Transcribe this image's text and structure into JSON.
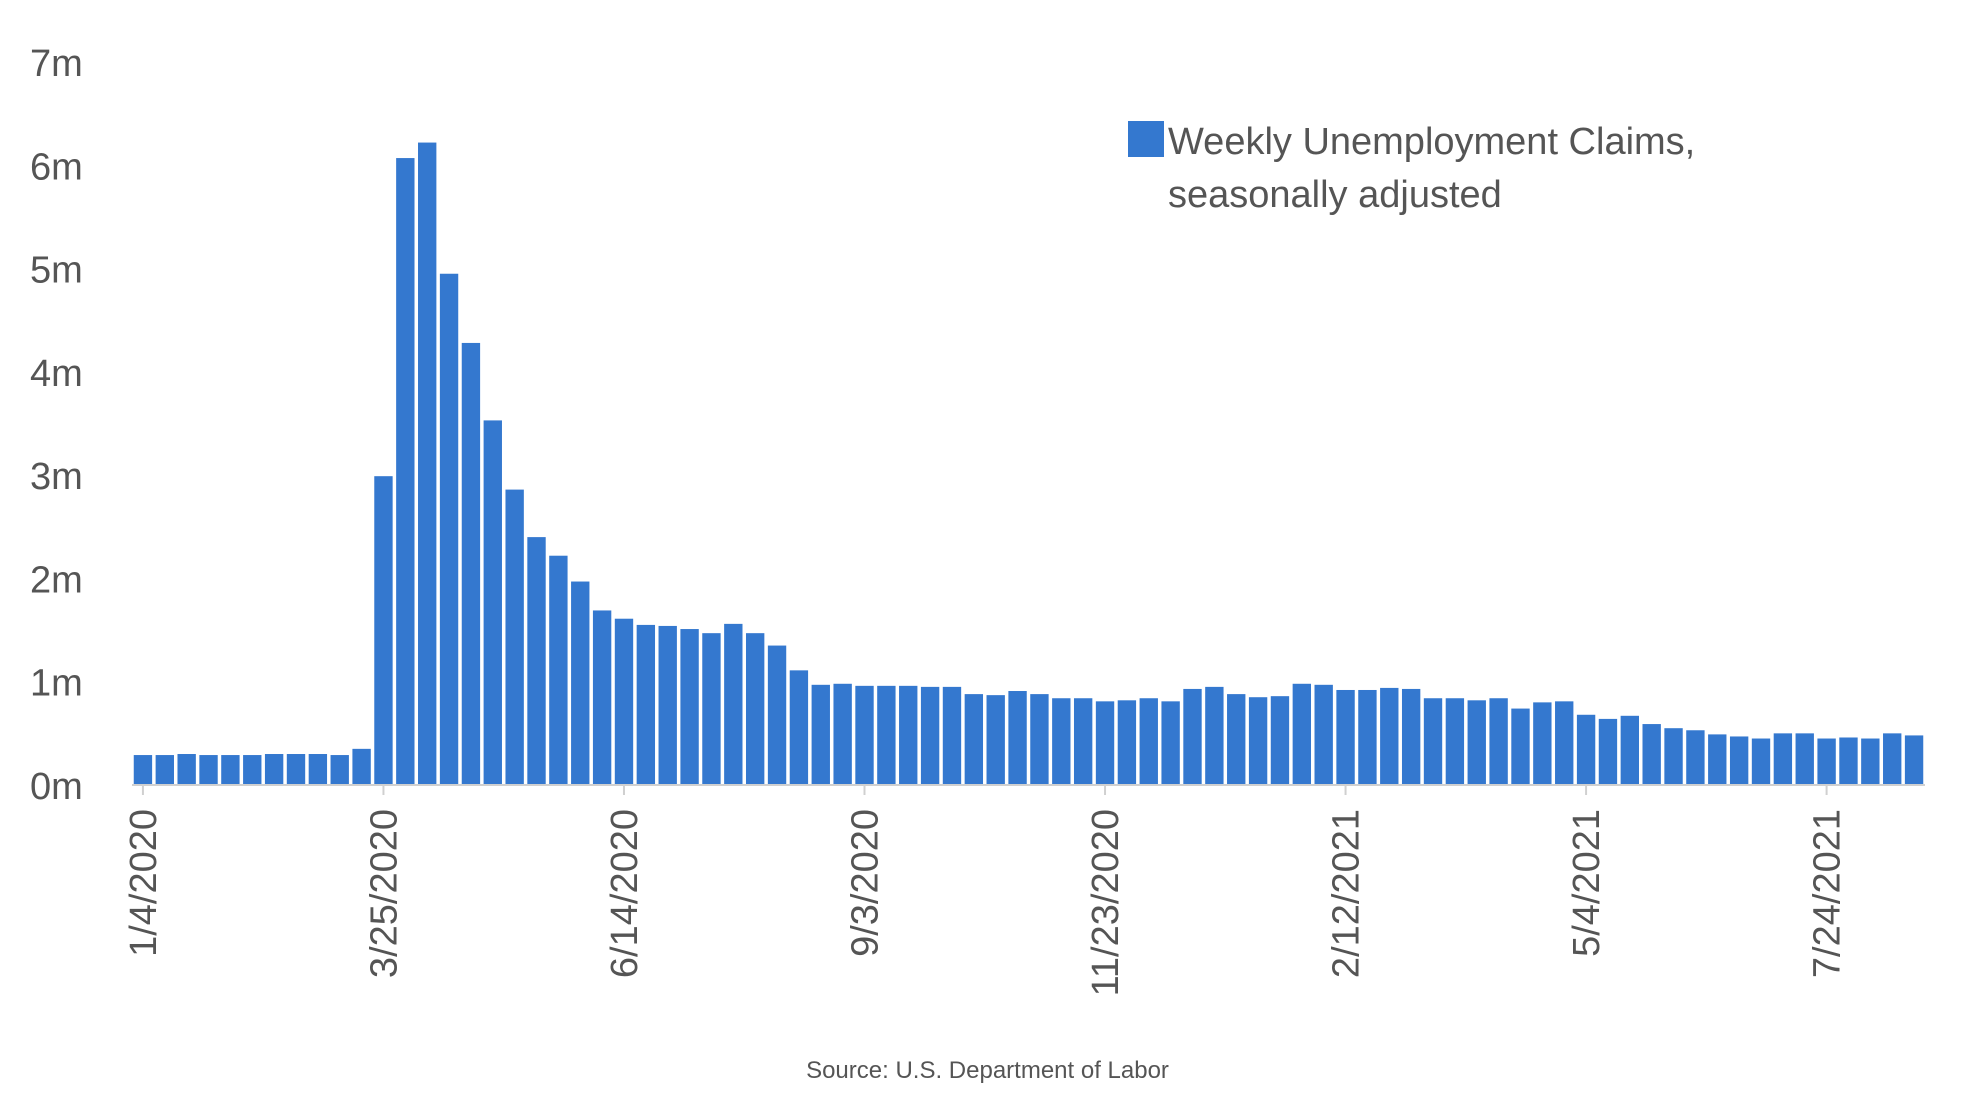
{
  "chart_data": {
    "type": "bar",
    "series": [
      {
        "name": "Weekly Unemployment Claims, seasonally adjusted",
        "color": "#3478cf",
        "values": [
          0.29,
          0.29,
          0.3,
          0.29,
          0.29,
          0.29,
          0.3,
          0.3,
          0.3,
          0.29,
          0.35,
          2.99,
          6.07,
          6.22,
          4.95,
          4.28,
          3.53,
          2.86,
          2.4,
          2.22,
          1.97,
          1.69,
          1.61,
          1.55,
          1.54,
          1.51,
          1.47,
          1.56,
          1.47,
          1.35,
          1.11,
          0.97,
          0.98,
          0.96,
          0.96,
          0.96,
          0.95,
          0.95,
          0.88,
          0.87,
          0.91,
          0.88,
          0.84,
          0.84,
          0.81,
          0.82,
          0.84,
          0.81,
          0.93,
          0.95,
          0.88,
          0.85,
          0.86,
          0.98,
          0.97,
          0.92,
          0.92,
          0.94,
          0.93,
          0.84,
          0.84,
          0.82,
          0.84,
          0.74,
          0.8,
          0.81,
          0.68,
          0.64,
          0.67,
          0.59,
          0.55,
          0.53,
          0.49,
          0.47,
          0.45,
          0.5,
          0.5,
          0.45,
          0.46,
          0.45,
          0.5,
          0.48
        ]
      }
    ],
    "x_tick_labels": [
      "1/4/2020",
      "3/25/2020",
      "6/14/2020",
      "9/3/2020",
      "11/23/2020",
      "2/12/2021",
      "5/4/2021",
      "7/24/2021"
    ],
    "y_tick_labels": [
      "0m",
      "1m",
      "2m",
      "3m",
      "4m",
      "5m",
      "6m",
      "7m"
    ],
    "ylim": [
      0,
      7
    ],
    "units": "millions",
    "legend_position": "top-right",
    "grid": false,
    "source": "Source: U.S. Department of Labor"
  }
}
